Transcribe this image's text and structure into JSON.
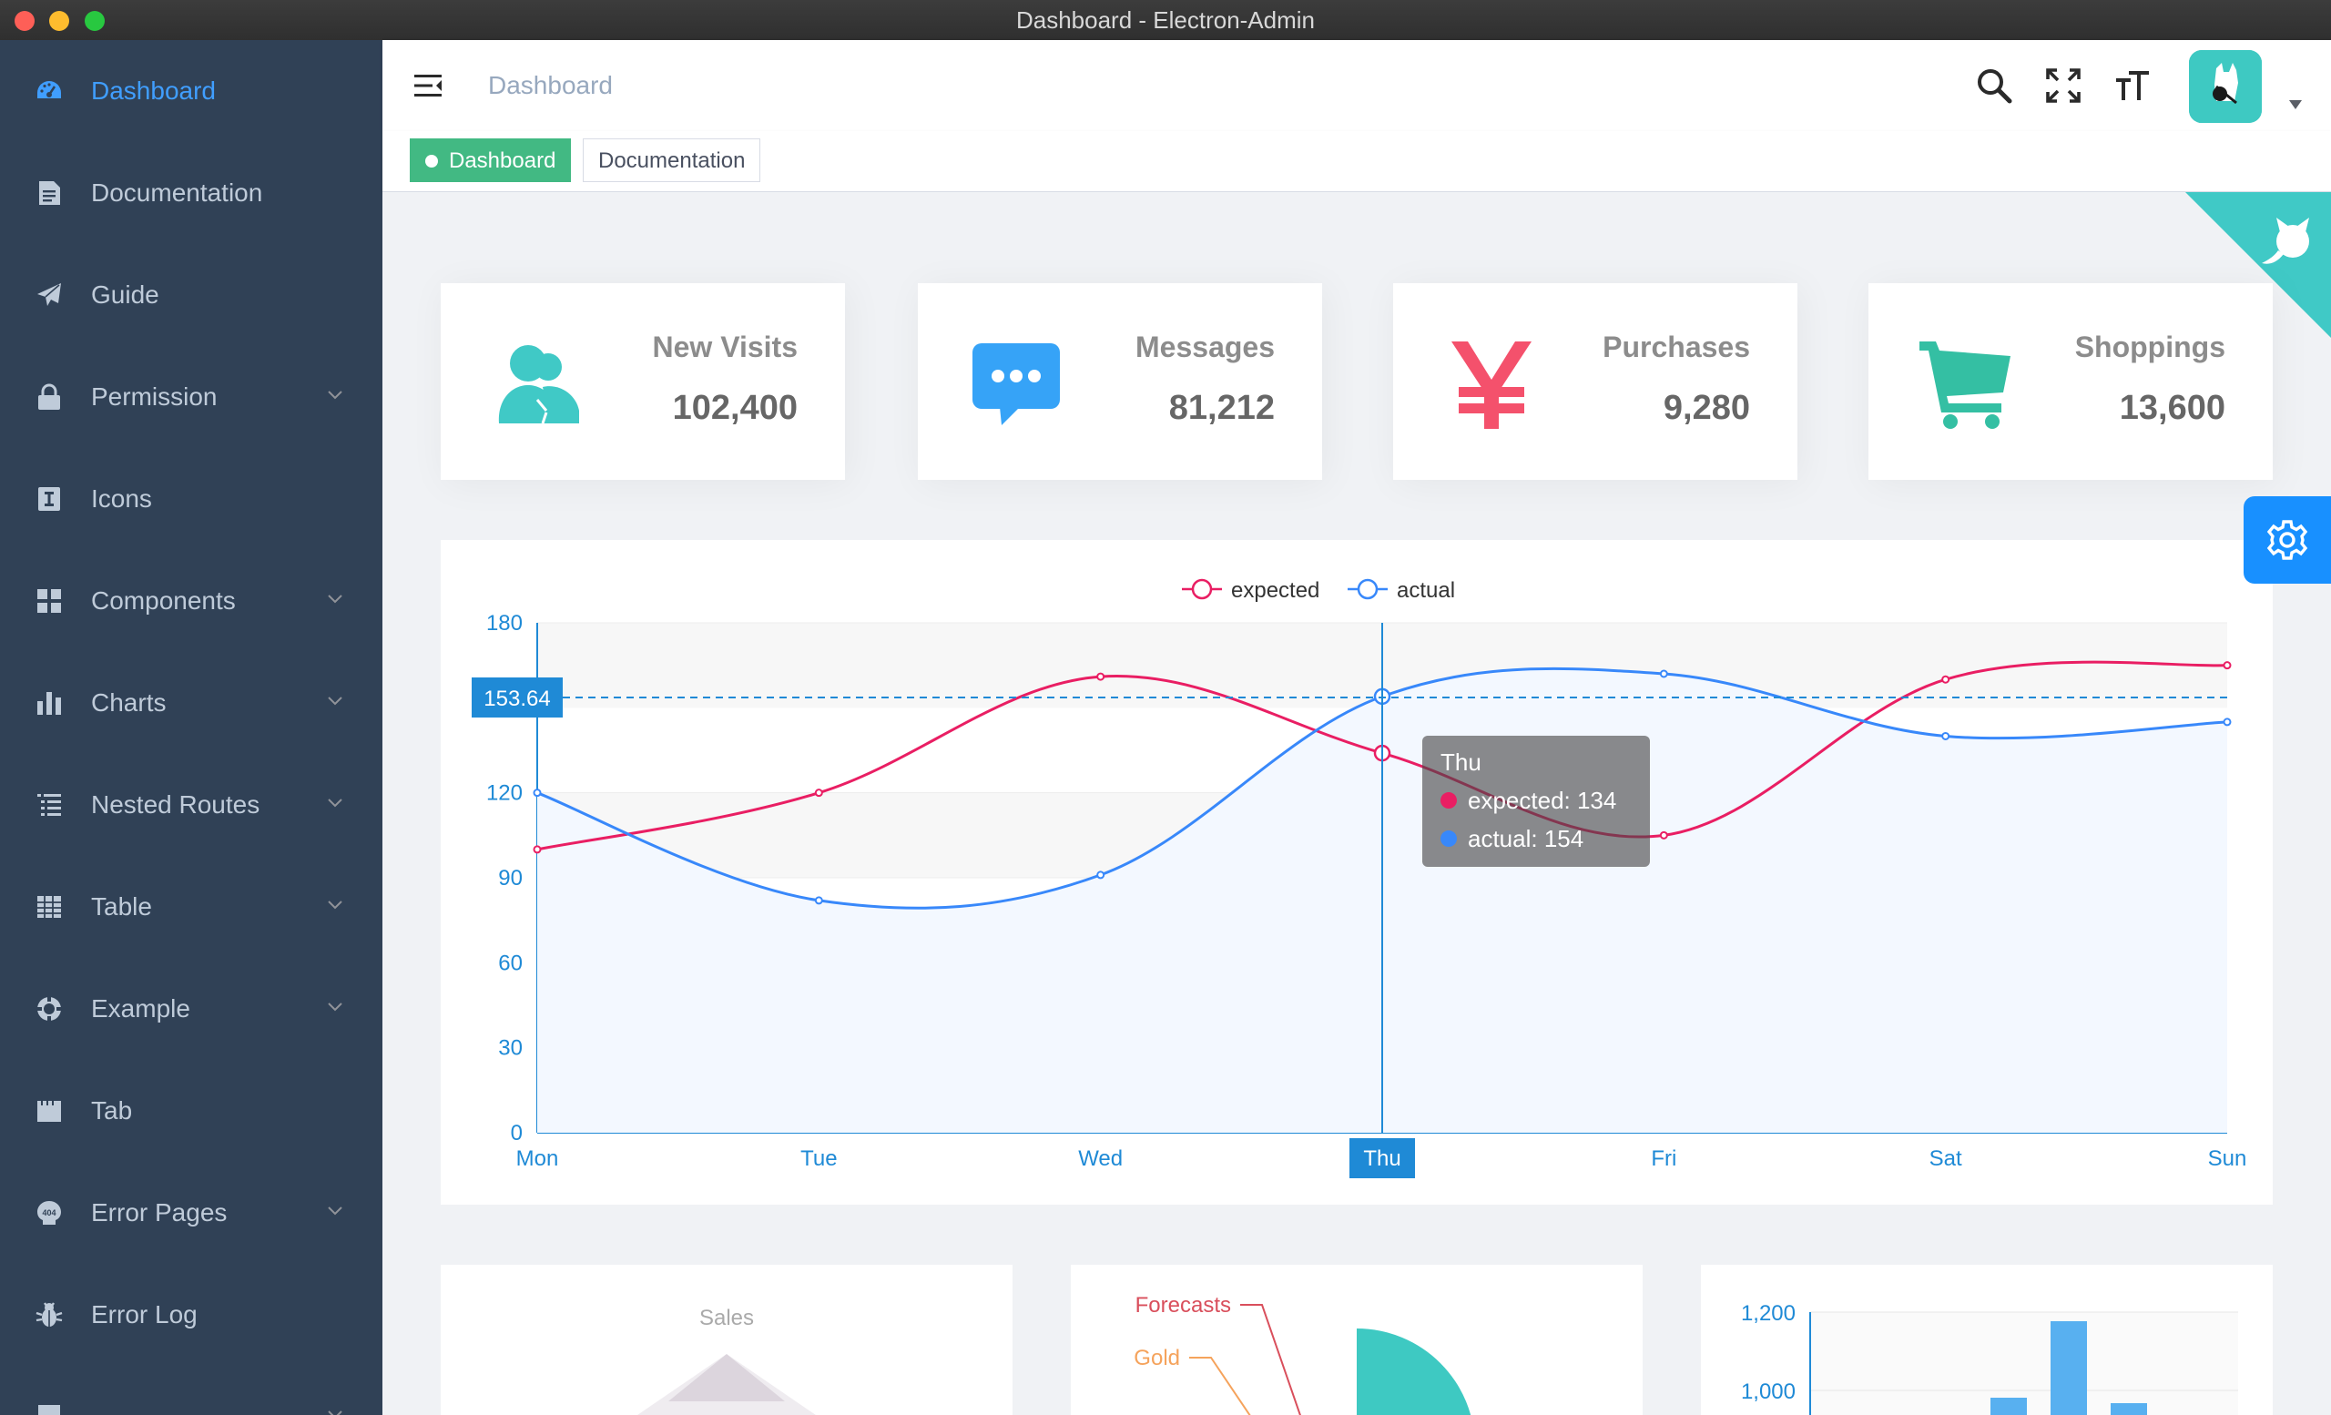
{
  "window": {
    "title": "Dashboard - Electron-Admin"
  },
  "sidebar": {
    "items": [
      {
        "label": "Dashboard",
        "icon": "dashboard-icon",
        "active": true
      },
      {
        "label": "Documentation",
        "icon": "documentation-icon"
      },
      {
        "label": "Guide",
        "icon": "guide-icon"
      },
      {
        "label": "Permission",
        "icon": "lock-icon",
        "has_children": true
      },
      {
        "label": "Icons",
        "icon": "icons-icon"
      },
      {
        "label": "Components",
        "icon": "components-icon",
        "has_children": true
      },
      {
        "label": "Charts",
        "icon": "charts-icon",
        "has_children": true
      },
      {
        "label": "Nested Routes",
        "icon": "nested-icon",
        "has_children": true
      },
      {
        "label": "Table",
        "icon": "table-icon",
        "has_children": true
      },
      {
        "label": "Example",
        "icon": "example-icon",
        "has_children": true
      },
      {
        "label": "Tab",
        "icon": "tab-icon"
      },
      {
        "label": "Error Pages",
        "icon": "404-icon",
        "has_children": true
      },
      {
        "label": "Error Log",
        "icon": "bug-icon"
      }
    ]
  },
  "navbar": {
    "breadcrumb": "Dashboard"
  },
  "tags": [
    {
      "label": "Dashboard",
      "active": true
    },
    {
      "label": "Documentation",
      "active": false
    }
  ],
  "cards": [
    {
      "title": "New Visits",
      "value": "102,400",
      "icon": "peoples-icon",
      "color": "#40c9c6"
    },
    {
      "title": "Messages",
      "value": "81,212",
      "icon": "message-icon",
      "color": "#36a3f7"
    },
    {
      "title": "Purchases",
      "value": "9,280",
      "icon": "money-icon",
      "color": "#f4516c"
    },
    {
      "title": "Shoppings",
      "value": "13,600",
      "icon": "shopping-icon",
      "color": "#34bfa3"
    }
  ],
  "chart_data": {
    "type": "line",
    "categories": [
      "Mon",
      "Tue",
      "Wed",
      "Thu",
      "Fri",
      "Sat",
      "Sun"
    ],
    "series": [
      {
        "name": "expected",
        "values": [
          100,
          120,
          161,
          134,
          105,
          160,
          165
        ],
        "color": "#e91e63"
      },
      {
        "name": "actual",
        "values": [
          120,
          82,
          91,
          154,
          162,
          140,
          145
        ],
        "color": "#3888fa"
      }
    ],
    "y_ticks": [
      "0",
      "30",
      "60",
      "90",
      "120",
      "180"
    ],
    "ylim": [
      0,
      180
    ],
    "legend_position": "top-center",
    "crosshair": {
      "category": "Thu",
      "y_label": "153.64",
      "y_value": 153.64
    },
    "tooltip": {
      "title": "Thu",
      "lines": [
        "expected: 134",
        "actual: 154"
      ]
    }
  },
  "bottom": {
    "radar_title": "Sales",
    "pie_labels": [
      "Forecasts",
      "Gold"
    ],
    "bar_ticks": [
      "1,200",
      "1,000"
    ]
  }
}
